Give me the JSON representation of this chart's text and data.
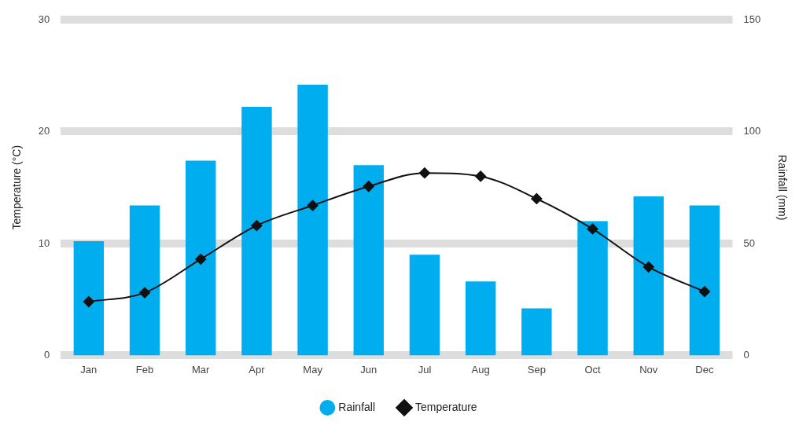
{
  "chart_data": {
    "type": "bar",
    "categories": [
      "Jan",
      "Feb",
      "Mar",
      "Apr",
      "May",
      "Jun",
      "Jul",
      "Aug",
      "Sep",
      "Oct",
      "Nov",
      "Dec"
    ],
    "series": [
      {
        "name": "Rainfall",
        "axis": "y2",
        "color": "#00aeef",
        "values": [
          51,
          67,
          87,
          111,
          121,
          85,
          45,
          33,
          21,
          60,
          71,
          67
        ]
      },
      {
        "name": "Temperature",
        "type": "line",
        "axis": "y",
        "color": "#111111",
        "marker": "diamond",
        "values": [
          4.8,
          5.6,
          8.6,
          11.6,
          13.4,
          15.1,
          16.3,
          16.0,
          14.0,
          11.3,
          7.9,
          5.7
        ]
      }
    ],
    "ylabel": "Temperature (°C)",
    "y2label": "Rainfall (mm)",
    "ylim": [
      0,
      30
    ],
    "yticks": [
      0,
      10,
      20,
      30
    ],
    "y2lim": [
      0,
      150
    ],
    "y2ticks": [
      0,
      50,
      100,
      150
    ],
    "grid": "y",
    "legend": "bottom"
  }
}
